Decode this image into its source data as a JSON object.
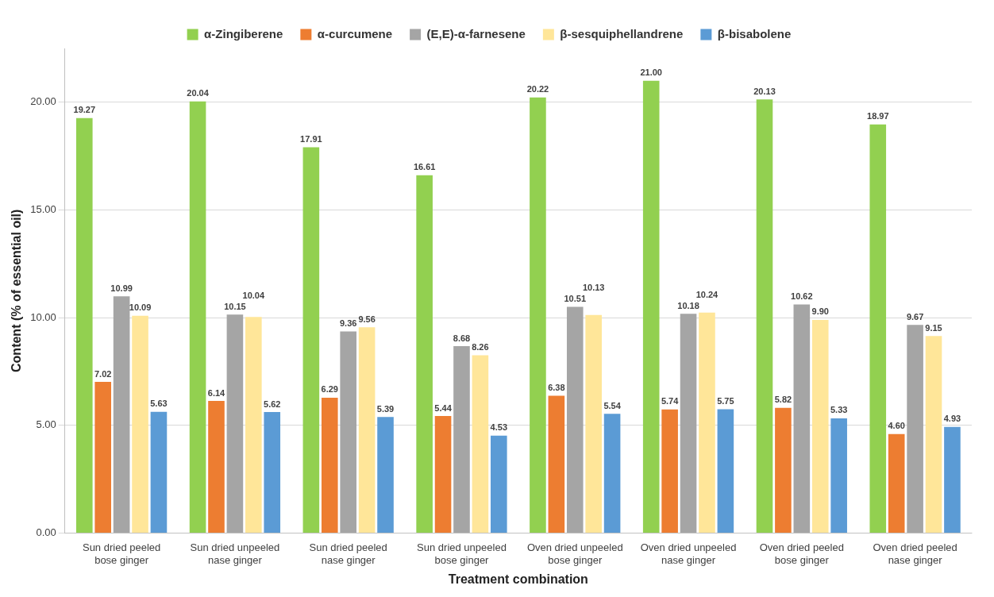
{
  "chart_data": {
    "type": "bar",
    "xlabel": "Treatment combination",
    "ylabel": "Content (% of essential oil)",
    "categories": [
      "Sun dried peeled bose ginger",
      "Sun dried unpeeled nase ginger",
      "Sun dried peeled nase ginger",
      "Sun dried unpeeled bose ginger",
      "Oven dried unpeeled bose ginger",
      "Oven dried unpeeled nase ginger",
      "Oven dried peeled bose ginger",
      "Oven dried peeled nase ginger"
    ],
    "series": [
      {
        "name": "α-Zingiberene",
        "color": "#92d050",
        "values": [
          19.27,
          20.04,
          17.91,
          16.61,
          20.22,
          21.0,
          20.13,
          18.97
        ],
        "value_labels": [
          "19.27",
          "20.04",
          "17.91",
          "16.61",
          "20.22",
          "21.00",
          "20.13",
          "18.97"
        ]
      },
      {
        "name": "α-curcumene",
        "color": "#ed7d31",
        "values": [
          7.02,
          6.14,
          6.29,
          5.44,
          6.38,
          5.74,
          5.82,
          4.6
        ],
        "value_labels": [
          "7.02",
          "6.14",
          "6.29",
          "5.44",
          "6.38",
          "5.74",
          "5.82",
          "4.60"
        ]
      },
      {
        "name": "(E,E)-α-farnesene",
        "color": "#a5a5a5",
        "values": [
          10.99,
          10.15,
          9.36,
          8.68,
          10.51,
          10.18,
          10.62,
          9.67
        ],
        "value_labels": [
          "10.99",
          "10.15",
          "9.36",
          "8.68",
          "10.51",
          "10.18",
          "10.62",
          "9.67"
        ]
      },
      {
        "name": "β-sesquiphellandrene",
        "color": "#ffe699",
        "values": [
          10.09,
          10.04,
          9.56,
          8.26,
          10.13,
          10.24,
          9.9,
          9.15
        ],
        "value_labels": [
          "10.09",
          "10.04",
          "9.56",
          "8.26",
          "10.13",
          "10.24",
          "9.90",
          "9.15"
        ]
      },
      {
        "name": "β-bisabolene",
        "color": "#5b9bd5",
        "values": [
          5.63,
          5.62,
          5.39,
          4.53,
          5.54,
          5.75,
          5.33,
          4.93
        ],
        "value_labels": [
          "5.63",
          "5.62",
          "5.39",
          "4.53",
          "5.54",
          "5.75",
          "5.33",
          "4.93"
        ]
      }
    ],
    "ylim": [
      0,
      22.5
    ],
    "yticks": [
      {
        "value": 0,
        "label": "0.00"
      },
      {
        "value": 5,
        "label": "5.00"
      },
      {
        "value": 10,
        "label": "10.00"
      },
      {
        "value": 15,
        "label": "15.00"
      },
      {
        "value": 20,
        "label": "20.00"
      }
    ],
    "grid": "y",
    "legend": "top"
  }
}
